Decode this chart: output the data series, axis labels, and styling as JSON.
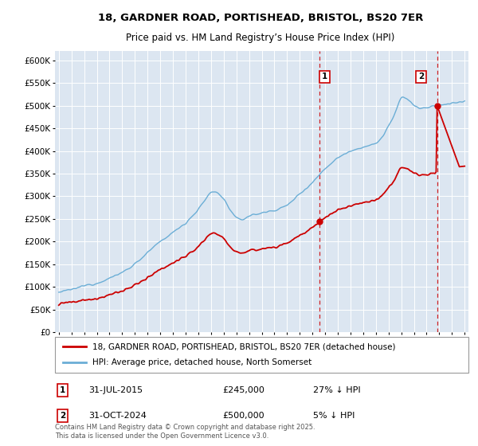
{
  "title_line1": "18, GARDNER ROAD, PORTISHEAD, BRISTOL, BS20 7ER",
  "title_line2": "Price paid vs. HM Land Registry’s House Price Index (HPI)",
  "ylim": [
    0,
    620000
  ],
  "yticks": [
    0,
    50000,
    100000,
    150000,
    200000,
    250000,
    300000,
    350000,
    400000,
    450000,
    500000,
    550000,
    600000
  ],
  "ytick_labels": [
    "£0",
    "£50K",
    "£100K",
    "£150K",
    "£200K",
    "£250K",
    "£300K",
    "£350K",
    "£400K",
    "£450K",
    "£500K",
    "£550K",
    "£600K"
  ],
  "xlim_start": 1994.7,
  "xlim_end": 2027.3,
  "hpi_color": "#6baed6",
  "price_color": "#cc0000",
  "t1": 2015.58,
  "p1": 245000,
  "t2": 2024.83,
  "p2": 500000,
  "annotation1_label": "1",
  "annotation1_date": "31-JUL-2015",
  "annotation1_price": "£245,000",
  "annotation1_note": "27% ↓ HPI",
  "annotation2_label": "2",
  "annotation2_date": "31-OCT-2024",
  "annotation2_price": "£500,000",
  "annotation2_note": "5% ↓ HPI",
  "legend_line1": "18, GARDNER ROAD, PORTISHEAD, BRISTOL, BS20 7ER (detached house)",
  "legend_line2": "HPI: Average price, detached house, North Somerset",
  "footer": "Contains HM Land Registry data © Crown copyright and database right 2025.\nThis data is licensed under the Open Government Licence v3.0.",
  "background_color": "#dce6f1"
}
